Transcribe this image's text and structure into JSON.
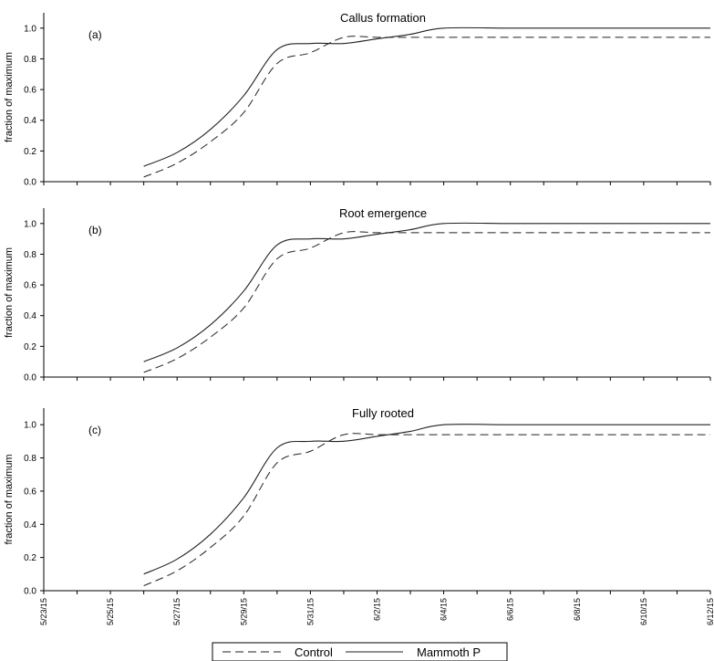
{
  "chart_data": {
    "type": "line",
    "legend": {
      "placement": "bottom-center",
      "entries": [
        {
          "label": "Control",
          "style": "dashed"
        },
        {
          "label": "Mammoth P",
          "style": "solid"
        }
      ]
    },
    "x_axis": {
      "range": [
        "5/23/15",
        "6/12/15"
      ],
      "tick_labels": [
        "5/23/15",
        "5/25/15",
        "5/27/15",
        "5/29/15",
        "5/31/15",
        "6/2/15",
        "6/4/15",
        "6/6/15",
        "6/8/15",
        "6/10/15",
        "6/12/15"
      ]
    },
    "y_axis": {
      "range": [
        0,
        1.1
      ],
      "tick_labels": [
        "0.0",
        "0.2",
        "0.4",
        "0.6",
        "0.8",
        "1.0"
      ],
      "tick_values": [
        0,
        0.2,
        0.4,
        0.6,
        0.8,
        1.0
      ]
    },
    "panels": [
      {
        "tag": "(a)",
        "title": "Callus formation",
        "ylabel": "fraction of maximum",
        "series": [
          {
            "name": "Control",
            "x": [
              "5/26/15",
              "5/27/15",
              "5/28/15",
              "5/29/15",
              "5/30/15",
              "5/31/15",
              "6/1/15",
              "6/2/15",
              "6/3/15",
              "6/4/15",
              "6/6/15",
              "6/8/15",
              "6/10/15",
              "6/12/15"
            ],
            "y": [
              0.03,
              0.12,
              0.26,
              0.45,
              0.77,
              0.84,
              0.94,
              0.94,
              0.94,
              0.94,
              0.94,
              0.94,
              0.94,
              0.94
            ]
          },
          {
            "name": "Mammoth P",
            "x": [
              "5/26/15",
              "5/27/15",
              "5/28/15",
              "5/29/15",
              "5/30/15",
              "5/31/15",
              "6/1/15",
              "6/2/15",
              "6/3/15",
              "6/4/15",
              "6/6/15",
              "6/8/15",
              "6/10/15",
              "6/12/15"
            ],
            "y": [
              0.1,
              0.19,
              0.34,
              0.56,
              0.86,
              0.9,
              0.9,
              0.93,
              0.96,
              1.0,
              1.0,
              1.0,
              1.0,
              1.0
            ]
          }
        ]
      },
      {
        "tag": "(b)",
        "title": "Root emergence",
        "ylabel": "fraction of maximum",
        "series": [
          {
            "name": "Control",
            "x": [
              "5/26/15",
              "5/27/15",
              "5/28/15",
              "5/29/15",
              "5/30/15",
              "5/31/15",
              "6/1/15",
              "6/2/15",
              "6/3/15",
              "6/4/15",
              "6/6/15",
              "6/8/15",
              "6/10/15",
              "6/12/15"
            ],
            "y": [
              0.03,
              0.12,
              0.26,
              0.45,
              0.77,
              0.84,
              0.94,
              0.94,
              0.94,
              0.94,
              0.94,
              0.94,
              0.94,
              0.94
            ]
          },
          {
            "name": "Mammoth P",
            "x": [
              "5/26/15",
              "5/27/15",
              "5/28/15",
              "5/29/15",
              "5/30/15",
              "5/31/15",
              "6/1/15",
              "6/2/15",
              "6/3/15",
              "6/4/15",
              "6/6/15",
              "6/8/15",
              "6/10/15",
              "6/12/15"
            ],
            "y": [
              0.1,
              0.19,
              0.34,
              0.56,
              0.86,
              0.9,
              0.9,
              0.93,
              0.96,
              1.0,
              1.0,
              1.0,
              1.0,
              1.0
            ]
          }
        ]
      },
      {
        "tag": "(c)",
        "title": "Fully rooted",
        "ylabel": "fraction of maximum",
        "series": [
          {
            "name": "Control",
            "x": [
              "5/26/15",
              "5/27/15",
              "5/28/15",
              "5/29/15",
              "5/30/15",
              "5/31/15",
              "6/1/15",
              "6/2/15",
              "6/3/15",
              "6/4/15",
              "6/6/15",
              "6/8/15",
              "6/10/15",
              "6/12/15"
            ],
            "y": [
              0.03,
              0.12,
              0.26,
              0.45,
              0.77,
              0.84,
              0.94,
              0.94,
              0.94,
              0.94,
              0.94,
              0.94,
              0.94,
              0.94
            ]
          },
          {
            "name": "Mammoth P",
            "x": [
              "5/26/15",
              "5/27/15",
              "5/28/15",
              "5/29/15",
              "5/30/15",
              "5/31/15",
              "6/1/15",
              "6/2/15",
              "6/3/15",
              "6/4/15",
              "6/6/15",
              "6/8/15",
              "6/10/15",
              "6/12/15"
            ],
            "y": [
              0.1,
              0.19,
              0.34,
              0.56,
              0.86,
              0.9,
              0.9,
              0.93,
              0.96,
              1.0,
              1.0,
              1.0,
              1.0,
              1.0
            ]
          }
        ]
      }
    ]
  }
}
